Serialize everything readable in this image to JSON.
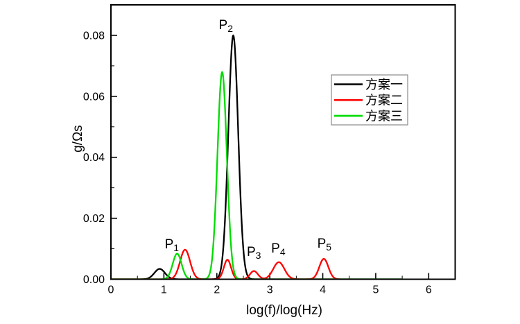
{
  "figure": {
    "background": "#ffffff",
    "axis_color": "#000000",
    "legend_border_color": "#888888"
  },
  "chart_data": {
    "type": "line",
    "title": "",
    "xlabel": "log(f)/log(Hz)",
    "ylabel": "g/Ωs",
    "xlim": [
      0,
      6.5
    ],
    "ylim": [
      0,
      0.09
    ],
    "grid": false,
    "x_ticks": [
      {
        "v": 0,
        "label": "0"
      },
      {
        "v": 1,
        "label": "1"
      },
      {
        "v": 2,
        "label": "2"
      },
      {
        "v": 3,
        "label": "3"
      },
      {
        "v": 4,
        "label": "4"
      },
      {
        "v": 5,
        "label": "5"
      },
      {
        "v": 6,
        "label": "6"
      }
    ],
    "y_ticks": [
      {
        "v": 0.0,
        "label": "0.00"
      },
      {
        "v": 0.02,
        "label": "0.02"
      },
      {
        "v": 0.04,
        "label": "0.04"
      },
      {
        "v": 0.06,
        "label": "0.06"
      },
      {
        "v": 0.08,
        "label": "0.08"
      }
    ],
    "x_minor_step": 0.5,
    "y_minor_step": 0.01,
    "legend": {
      "position": "upper-right",
      "border": true
    },
    "series": [
      {
        "name": "方案一",
        "color": "#000000",
        "x_range": [
          0,
          5.5
        ],
        "peaks": [
          {
            "center": 0.92,
            "height": 0.0034,
            "sigma": 0.1
          },
          {
            "center": 2.31,
            "height": 0.08,
            "sigma": 0.093
          }
        ]
      },
      {
        "name": "方案二",
        "color": "#ff0000",
        "x_range": [
          0,
          4.32
        ],
        "peaks": [
          {
            "center": 1.4,
            "height": 0.0097,
            "sigma": 0.094
          },
          {
            "center": 2.2,
            "height": 0.0064,
            "sigma": 0.068
          },
          {
            "center": 2.7,
            "height": 0.0027,
            "sigma": 0.075
          },
          {
            "center": 3.17,
            "height": 0.0056,
            "sigma": 0.105
          },
          {
            "center": 4.02,
            "height": 0.0067,
            "sigma": 0.085
          }
        ]
      },
      {
        "name": "方案三",
        "color": "#00dc00",
        "x_range": [
          0,
          5.5
        ],
        "peaks": [
          {
            "center": 1.25,
            "height": 0.0084,
            "sigma": 0.083
          },
          {
            "center": 2.1,
            "height": 0.068,
            "sigma": 0.088
          }
        ]
      }
    ],
    "annotations": [
      {
        "main": "P",
        "sub": "1",
        "x": 1.15,
        "y": 0.0117
      },
      {
        "main": "P",
        "sub": "2",
        "x": 2.17,
        "y": 0.0836
      },
      {
        "main": "P",
        "sub": "3",
        "x": 2.7,
        "y": 0.0092
      },
      {
        "main": "P",
        "sub": "4",
        "x": 3.16,
        "y": 0.0104
      },
      {
        "main": "P",
        "sub": "5",
        "x": 4.03,
        "y": 0.0119
      }
    ]
  }
}
